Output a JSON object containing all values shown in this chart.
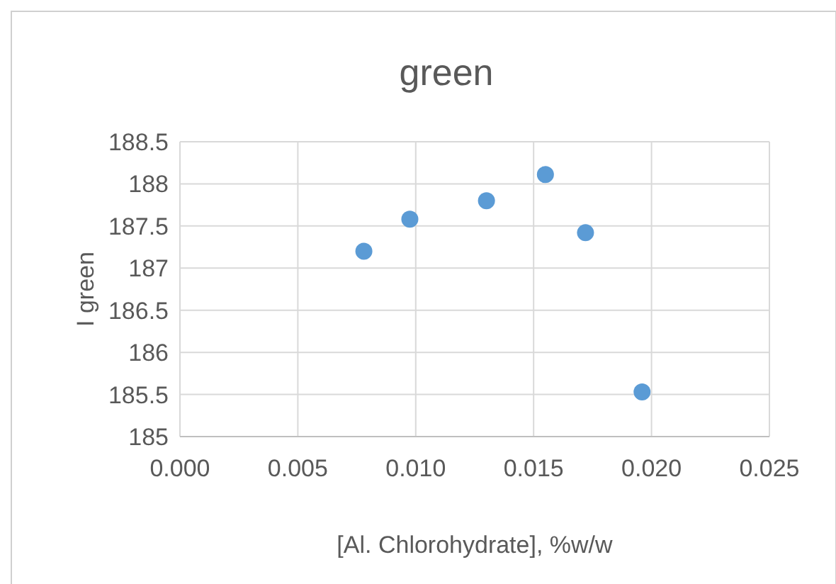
{
  "chart_data": {
    "type": "scatter",
    "title": "green",
    "xlabel": "[Al. Chlorohydrate], %w/w",
    "ylabel": "I green",
    "x": [
      0.0078,
      0.00975,
      0.013,
      0.0155,
      0.0172,
      0.0196
    ],
    "series": [
      {
        "color": "#5b9bd5",
        "values": [
          187.2,
          187.58,
          187.8,
          188.11,
          187.42,
          185.53
        ]
      }
    ],
    "xlim": [
      0,
      0.025
    ],
    "xticks": [
      {
        "value": 0,
        "label": "0.000"
      },
      {
        "value": 0.005,
        "label": "0.005"
      },
      {
        "value": 0.01,
        "label": "0.010"
      },
      {
        "value": 0.015,
        "label": "0.015"
      },
      {
        "value": 0.02,
        "label": "0.020"
      },
      {
        "value": 0.025,
        "label": "0.025"
      }
    ],
    "ylim": [
      185,
      188.5
    ],
    "yticks": [
      185,
      185.5,
      186,
      186.5,
      187,
      187.5,
      188,
      188.5
    ],
    "grid": true,
    "marker": "circle"
  }
}
